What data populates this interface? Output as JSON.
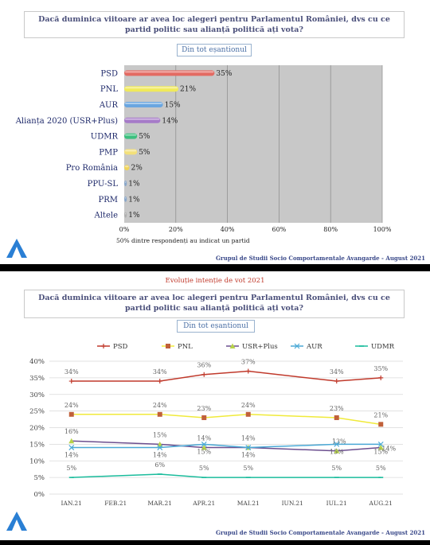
{
  "panel1": {
    "question": "Dacă duminica viitoare ar avea loc alegeri pentru Parlamentul României, dvs cu ce partid politic sau alianță politică ați vota?",
    "sample_label": "Din tot eșantionul",
    "footer": "Grupul de Studii Socio Comportamentale Avangarde   -  August 2021"
  },
  "panel2": {
    "title": "Evoluție intenție de vot 2021",
    "question": "Dacă duminica viitoare ar avea loc alegeri pentru Parlamentul României, dvs cu ce partid politic sau alianță politică ați vota?",
    "sample_label": "Din tot eșantionul",
    "footer": "Grupul de Studii Socio Comportamentale Avangarde   -  August 2021"
  },
  "colors": {
    "PSD": "#c0392b",
    "PNL": "#f0ea3a",
    "AUR": "#4a8fd6",
    "Alianta": "#9b59b6",
    "UDMR": "#27ae60",
    "PMP": "#f3e07a",
    "USR": "#6c4f8f",
    "AUR_line": "#4aa9d6",
    "UDMR_line": "#1abc9c",
    "plot_bg": "#c8c8c8",
    "logo": "#2a7fd4"
  },
  "chart_data": [
    {
      "type": "bar",
      "orientation": "horizontal",
      "categories": [
        "PSD",
        "PNL",
        "AUR",
        "Alianța 2020 (USR+Plus)",
        "UDMR",
        "PMP",
        "Pro România",
        "PPU-SL",
        "PRM",
        "Altele"
      ],
      "values": [
        35,
        21,
        15,
        14,
        5,
        5,
        2,
        1,
        1,
        1
      ],
      "value_labels": [
        "35%",
        "21%",
        "15%",
        "14%",
        "5%",
        "5%",
        "2%",
        "1%",
        "1%",
        "1%"
      ],
      "bar_colors": [
        "#e36b63",
        "#f0ea5a",
        "#6aa6e0",
        "#a67bc8",
        "#3dbf7e",
        "#f3e07a",
        "#f0d45a",
        "#8aa7c9",
        "#8aa7c9",
        "#b0b0b0"
      ],
      "xticks": [
        "0%",
        "20%",
        "40%",
        "60%",
        "80%",
        "100%"
      ],
      "xlim": [
        0,
        100
      ],
      "note": "50% dintre respondenți au indicat un partid"
    },
    {
      "type": "line",
      "x": [
        "IAN.21",
        "FEB.21",
        "MAR.21",
        "APR.21",
        "MAI.21",
        "IUN.21",
        "IUL.21",
        "AUG.21"
      ],
      "yticks": [
        "0%",
        "5%",
        "10%",
        "15%",
        "20%",
        "25%",
        "30%",
        "35%",
        "40%"
      ],
      "ylim": [
        0,
        40
      ],
      "series": [
        {
          "name": "PSD",
          "marker": "plus",
          "values": [
            34,
            null,
            34,
            36,
            37,
            null,
            34,
            35
          ],
          "labels": [
            "34%",
            null,
            "34%",
            "36%",
            "37%",
            null,
            "34%",
            "35%"
          ]
        },
        {
          "name": "PNL",
          "marker": "square",
          "values": [
            24,
            null,
            24,
            23,
            24,
            null,
            23,
            21
          ],
          "labels": [
            "24%",
            null,
            "24%",
            "23%",
            "24%",
            null,
            "23%",
            "21%"
          ]
        },
        {
          "name": "USR+Plus",
          "marker": "triangle",
          "values": [
            16,
            null,
            15,
            14,
            14,
            null,
            13,
            14
          ],
          "labels": [
            "16%",
            null,
            "15%",
            "14%",
            "14%",
            null,
            "13%",
            "14%"
          ]
        },
        {
          "name": "AUR",
          "marker": "x",
          "values": [
            14,
            null,
            14,
            15,
            14,
            null,
            15,
            15
          ],
          "labels": [
            "14%",
            null,
            "14%",
            "15%",
            "14%",
            null,
            "15%",
            "15%"
          ]
        },
        {
          "name": "UDMR",
          "marker": "dash",
          "values": [
            5,
            null,
            6,
            5,
            5,
            null,
            5,
            5
          ],
          "labels": [
            "5%",
            null,
            "6%",
            "5%",
            "5%",
            null,
            "5%",
            "5%"
          ]
        }
      ],
      "legend_position": "top"
    }
  ]
}
